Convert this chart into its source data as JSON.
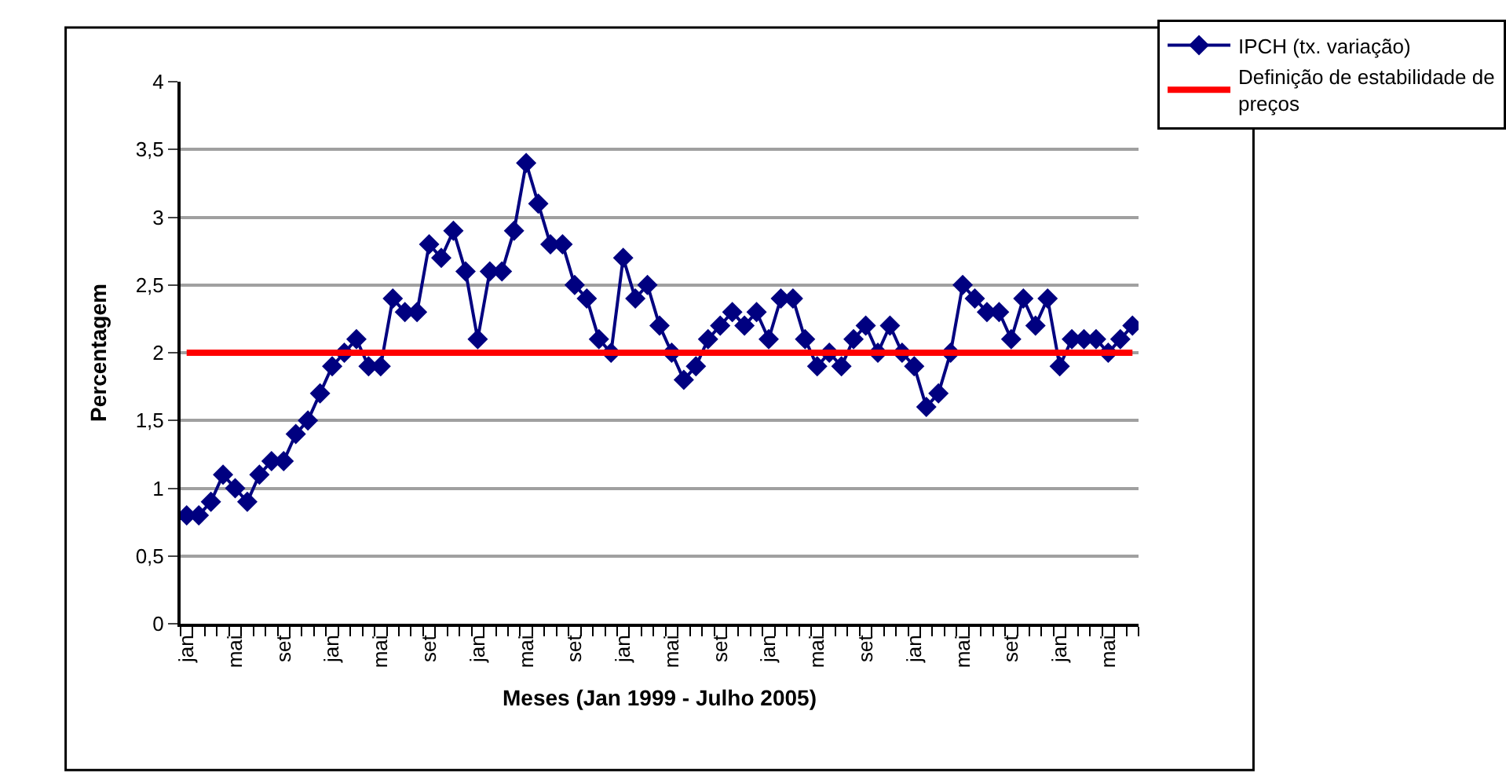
{
  "chart_data": {
    "type": "line",
    "xlabel": "Meses (Jan 1999 - Julho 2005)",
    "ylabel": "Percentagem",
    "categories": [
      "jan",
      null,
      null,
      null,
      "mai",
      null,
      null,
      null,
      "set",
      null,
      null,
      null,
      "jan",
      null,
      null,
      null,
      "mai",
      null,
      null,
      null,
      "set",
      null,
      null,
      null,
      "jan",
      null,
      null,
      null,
      "mai",
      null,
      null,
      null,
      "set",
      null,
      null,
      null,
      "jan",
      null,
      null,
      null,
      "mai",
      null,
      null,
      null,
      "set",
      null,
      null,
      null,
      "jan",
      null,
      null,
      null,
      "mai",
      null,
      null,
      null,
      "set",
      null,
      null,
      null,
      "jan",
      null,
      null,
      null,
      "mai",
      null,
      null,
      null,
      "set",
      null,
      null,
      null,
      "jan",
      null,
      null,
      null,
      "mai",
      null,
      null
    ],
    "series": [
      {
        "name": "IPCH (tx. variação)",
        "color": "#000080",
        "marker": "diamond",
        "values": [
          0.8,
          0.8,
          0.9,
          1.1,
          1.0,
          0.9,
          1.1,
          1.2,
          1.2,
          1.4,
          1.5,
          1.7,
          1.9,
          2.0,
          2.1,
          1.9,
          1.9,
          2.4,
          2.3,
          2.3,
          2.8,
          2.7,
          2.9,
          2.6,
          2.1,
          2.6,
          2.6,
          2.9,
          3.4,
          3.1,
          2.8,
          2.8,
          2.5,
          2.4,
          2.1,
          2.0,
          2.7,
          2.4,
          2.5,
          2.2,
          2.0,
          1.8,
          1.9,
          2.1,
          2.2,
          2.3,
          2.2,
          2.3,
          2.1,
          2.4,
          2.4,
          2.1,
          1.9,
          2.0,
          1.9,
          2.1,
          2.2,
          2.0,
          2.2,
          2.0,
          1.9,
          1.6,
          1.7,
          2.0,
          2.5,
          2.4,
          2.3,
          2.3,
          2.1,
          2.4,
          2.2,
          2.4,
          1.9,
          2.1,
          2.1,
          2.1,
          2.0,
          2.1,
          2.2
        ]
      },
      {
        "name": "Definição de estabilidade de\npreços",
        "color": "#ff0000",
        "marker": "none",
        "values": [
          2,
          2,
          2,
          2,
          2,
          2,
          2,
          2,
          2,
          2,
          2,
          2,
          2,
          2,
          2,
          2,
          2,
          2,
          2,
          2,
          2,
          2,
          2,
          2,
          2,
          2,
          2,
          2,
          2,
          2,
          2,
          2,
          2,
          2,
          2,
          2,
          2,
          2,
          2,
          2,
          2,
          2,
          2,
          2,
          2,
          2,
          2,
          2,
          2,
          2,
          2,
          2,
          2,
          2,
          2,
          2,
          2,
          2,
          2,
          2,
          2,
          2,
          2,
          2,
          2,
          2,
          2,
          2,
          2,
          2,
          2,
          2,
          2,
          2,
          2,
          2,
          2,
          2,
          2
        ]
      }
    ],
    "ylim": [
      0,
      4
    ],
    "yticks": [
      0,
      {
        "value": 0.5,
        "label": "0,5"
      },
      1,
      {
        "value": 1.5,
        "label": "1,5"
      },
      2,
      {
        "value": 2.5,
        "label": "2,5"
      },
      3,
      {
        "value": 3.5,
        "label": "3,5"
      },
      4
    ],
    "grid": "y",
    "legend": "top right"
  }
}
